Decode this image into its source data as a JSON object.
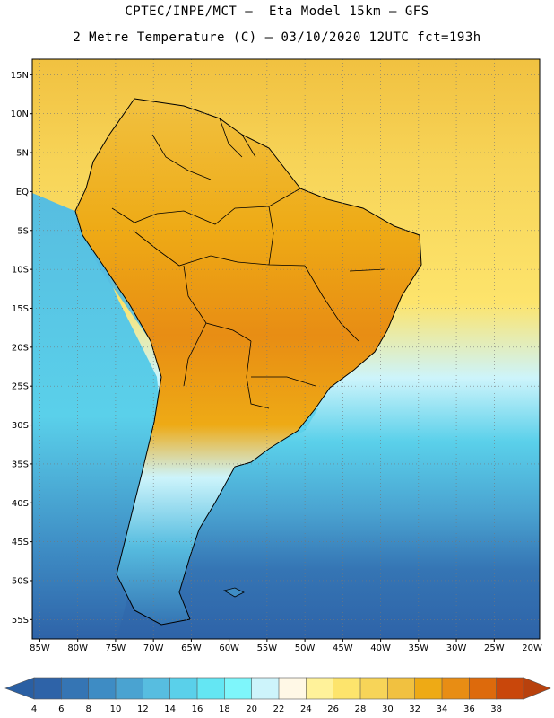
{
  "header": {
    "line1": "CPTEC/INPE/MCT –  Eta Model 15km – GFS",
    "line2": "2 Metre Temperature (C) – 03/10/2020 12UTC fct=193h"
  },
  "axes": {
    "lat_labels": [
      "15N",
      "10N",
      "5N",
      "EQ",
      "5S",
      "10S",
      "15S",
      "20S",
      "25S",
      "30S",
      "35S",
      "40S",
      "45S",
      "50S",
      "55S"
    ],
    "lat_values": [
      15,
      10,
      5,
      0,
      -5,
      -10,
      -15,
      -20,
      -25,
      -30,
      -35,
      -40,
      -45,
      -50,
      -55
    ],
    "lon_labels": [
      "85W",
      "80W",
      "75W",
      "70W",
      "65W",
      "60W",
      "55W",
      "50W",
      "45W",
      "40W",
      "35W",
      "30W",
      "25W",
      "20W"
    ],
    "lon_values": [
      -85,
      -80,
      -75,
      -70,
      -65,
      -60,
      -55,
      -50,
      -45,
      -40,
      -35,
      -30,
      -25,
      -20
    ],
    "lat_range": [
      -57.5,
      17
    ],
    "lon_range": [
      -86,
      -19
    ],
    "gridlines": "dotted"
  },
  "colorbar": {
    "ticks": [
      "4",
      "6",
      "8",
      "10",
      "12",
      "14",
      "16",
      "18",
      "20",
      "22",
      "24",
      "26",
      "28",
      "30",
      "32",
      "34",
      "36",
      "38"
    ],
    "low_color": "#2a5fa3",
    "high_color": "#b8410d",
    "colors": [
      "#2e63a8",
      "#3575b4",
      "#3e8cc4",
      "#4aa3d1",
      "#57bde0",
      "#5ad0ea",
      "#64e6f3",
      "#7ef6fb",
      "#cdf4fb",
      "#fff8e6",
      "#fff29a",
      "#fde46c",
      "#f7d458",
      "#f1c140",
      "#eeaa15",
      "#e88d14",
      "#dd6a0c",
      "#c9470b"
    ]
  },
  "colors": {
    "ocean_south": "#2e63a8",
    "ocean_mid": "#4aa3d1",
    "ocean_north": "#f1c140",
    "land_warm": "#e88d14",
    "land_hot": "#dd6a0c",
    "andes": "#57bde0",
    "borders": "#000000"
  }
}
